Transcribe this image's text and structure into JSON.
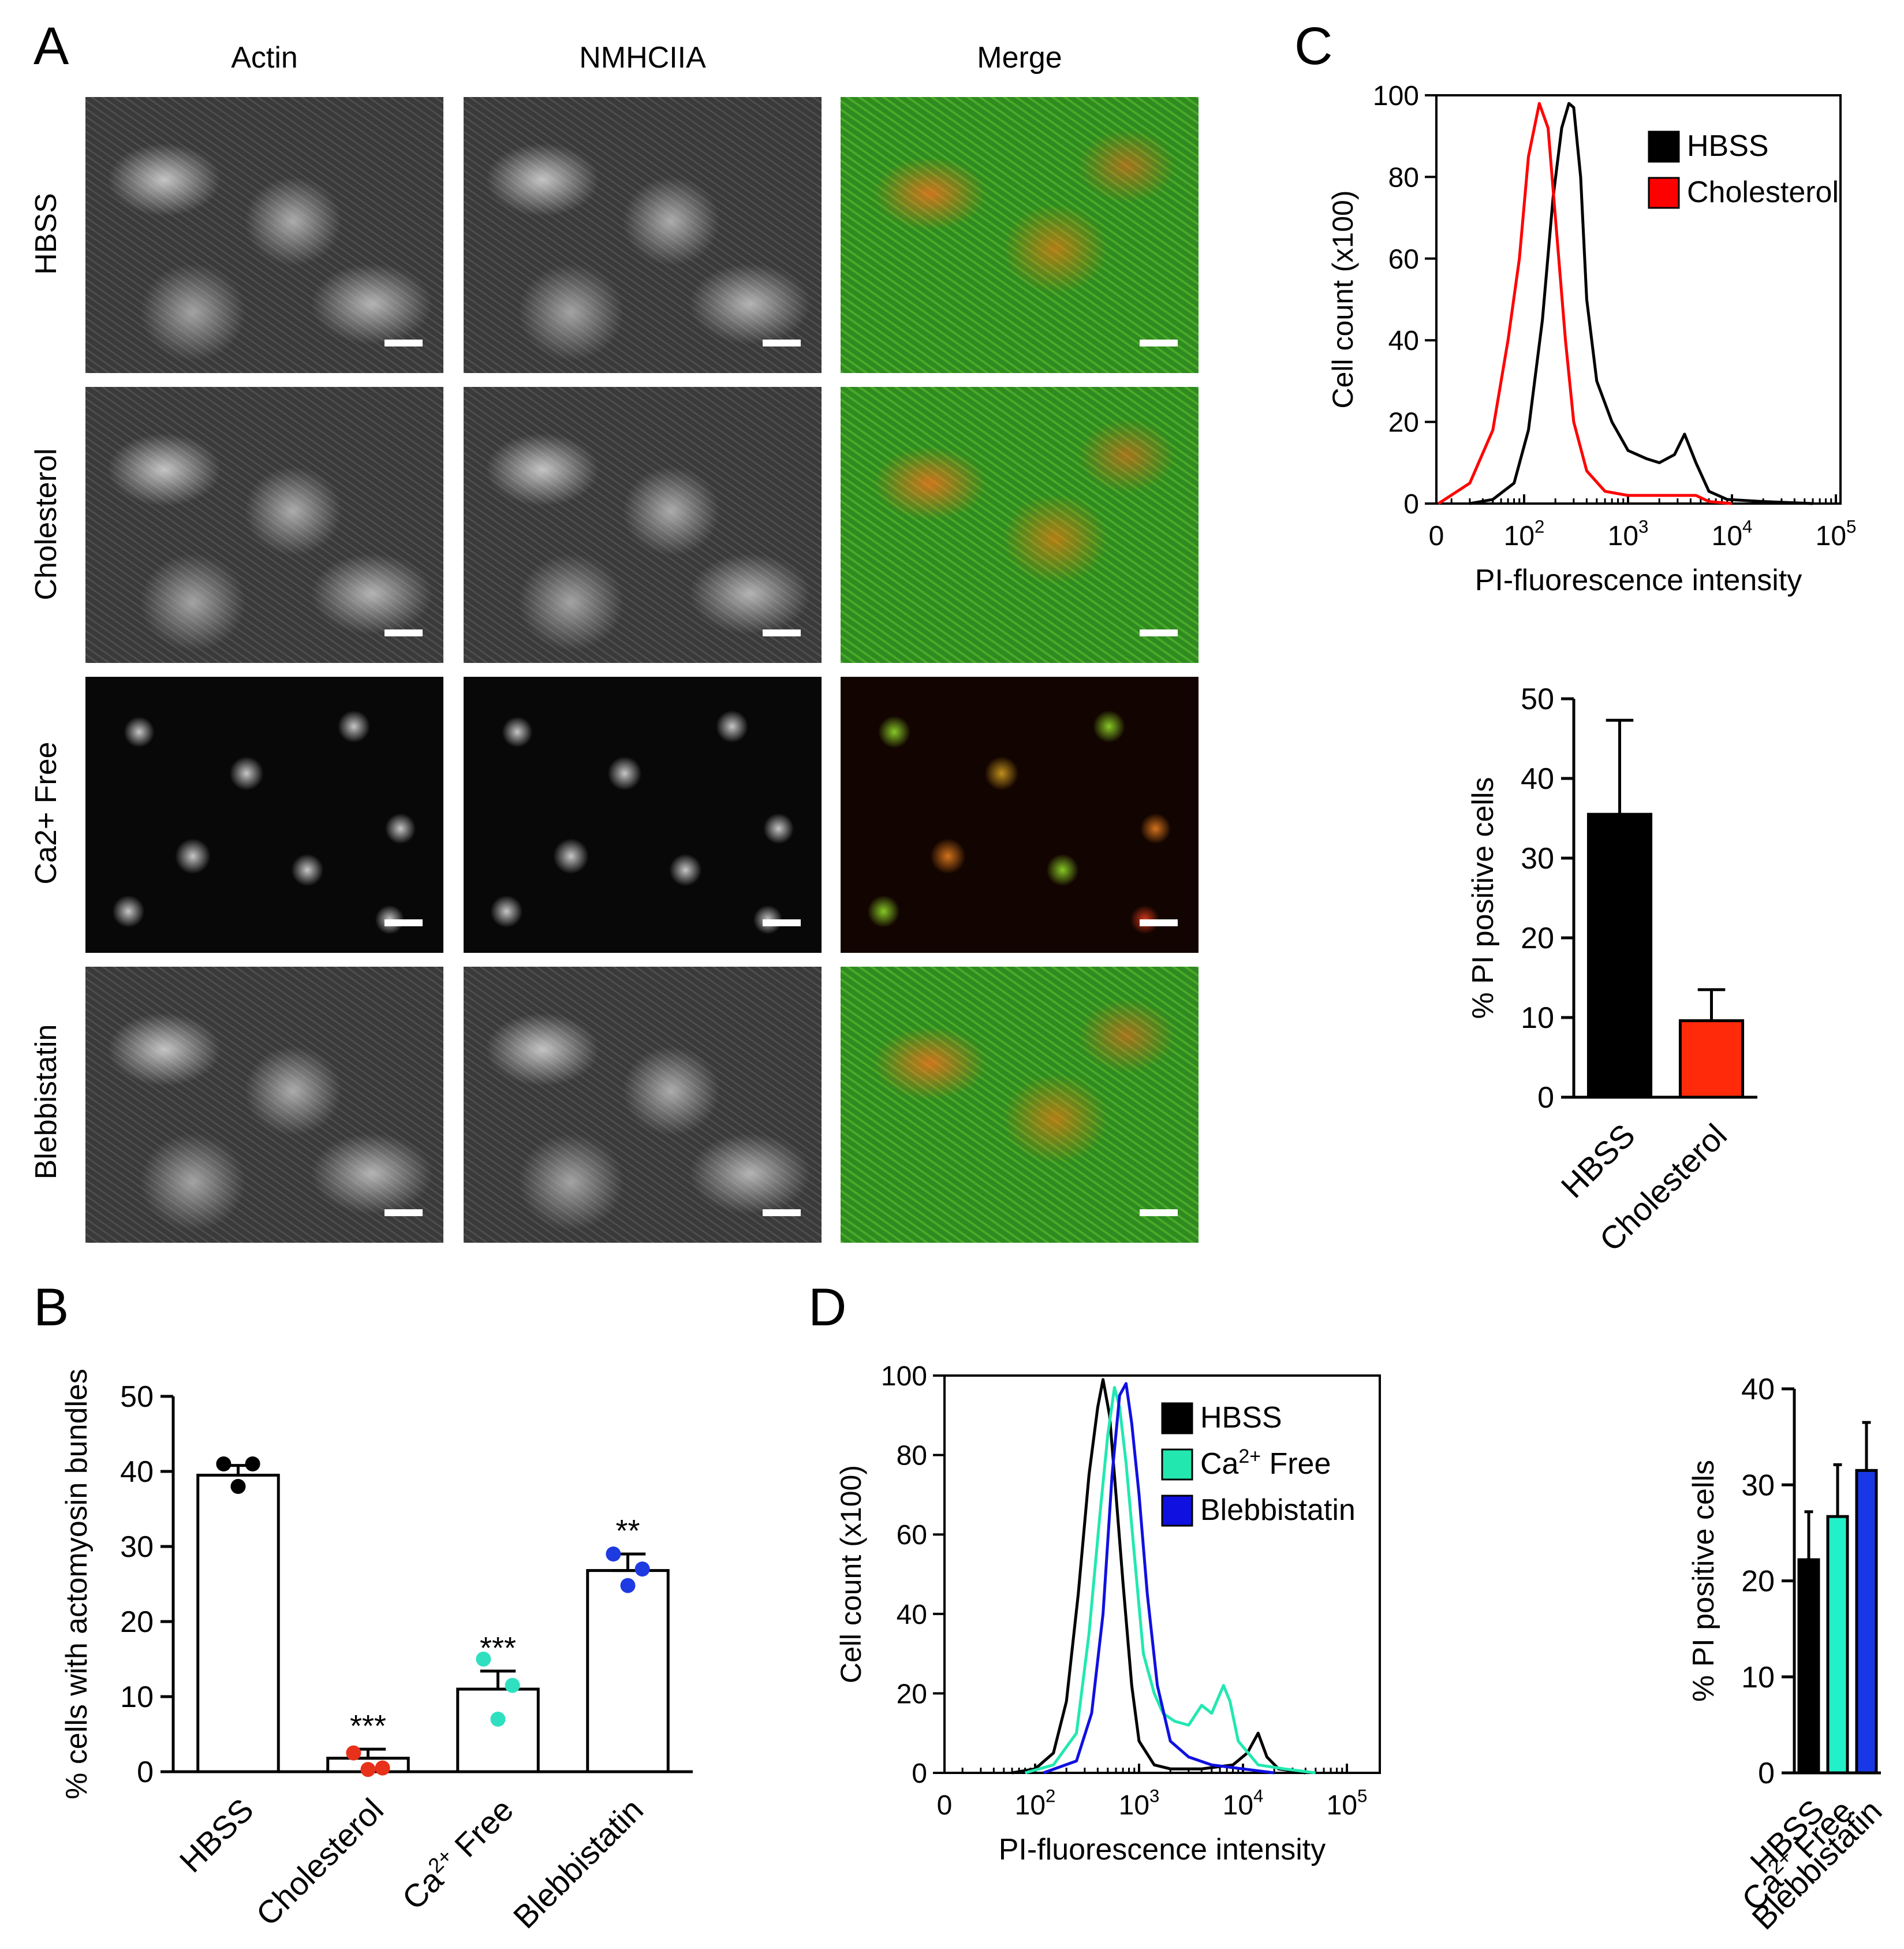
{
  "panel_labels": {
    "a": "A",
    "b": "B",
    "c": "C",
    "d": "D"
  },
  "microscopy": {
    "columns": [
      "Actin",
      "NMHCIIA",
      "Merge"
    ],
    "rows": [
      "HBSS",
      "Cholesterol",
      "Ca2+ Free",
      "Blebbistatin"
    ]
  },
  "chart_data": [
    {
      "id": "B",
      "type": "bar",
      "categories": [
        "HBSS",
        "Cholesterol",
        "Ca2+ Free",
        "Blebbistatin"
      ],
      "values": [
        39.5,
        1.8,
        11,
        26.8
      ],
      "errors": [
        1.3,
        1.2,
        2.4,
        2.2
      ],
      "points": [
        [
          41.0,
          41.0,
          38.0
        ],
        [
          2.5,
          0.5,
          0.3
        ],
        [
          15.0,
          11.5,
          7.0
        ],
        [
          29.0,
          27.0,
          24.8
        ]
      ],
      "point_colors": [
        "#000000",
        "#e8311a",
        "#2fe0c0",
        "#1d3be0"
      ],
      "significance": [
        "",
        "***",
        "***",
        "**"
      ],
      "ylabel": "% cells with actomyosin bundles",
      "ylim": [
        0,
        50
      ],
      "yticks": [
        0,
        10,
        20,
        30,
        40,
        50
      ]
    },
    {
      "id": "C-histogram",
      "type": "line",
      "xscale": "log",
      "xlabel": "PI-fluorescence intensity",
      "ylabel": "Cell count (x100)",
      "ylim": [
        0,
        100
      ],
      "yticks": [
        0,
        20,
        40,
        60,
        80,
        100
      ],
      "xticks": [
        "0",
        "10^2",
        "10^3",
        "10^4",
        "10^5"
      ],
      "legend_position": "top-right",
      "series": [
        {
          "name": "HBSS",
          "color": "#000000",
          "x": [
            30,
            50,
            80,
            110,
            150,
            190,
            230,
            270,
            300,
            350,
            400,
            500,
            700,
            1000,
            1500,
            2000,
            2800,
            3500,
            4500,
            6000,
            9000,
            20000,
            60000
          ],
          "y": [
            0,
            1,
            5,
            18,
            45,
            75,
            92,
            98,
            97,
            80,
            50,
            30,
            20,
            13,
            11,
            10,
            12,
            17,
            10,
            3,
            1,
            0.5,
            0
          ]
        },
        {
          "name": "Cholesterol",
          "color": "#ff0000",
          "x": [
            15,
            30,
            50,
            70,
            90,
            110,
            140,
            170,
            200,
            250,
            300,
            400,
            600,
            1000,
            2000,
            3000,
            4500,
            6000,
            10000
          ],
          "y": [
            0,
            5,
            18,
            40,
            60,
            85,
            98,
            92,
            70,
            40,
            20,
            8,
            3,
            2,
            2,
            2,
            2,
            0.5,
            0
          ]
        }
      ]
    },
    {
      "id": "C-bar",
      "type": "bar",
      "categories": [
        "HBSS",
        "Cholesterol"
      ],
      "values": [
        35.5,
        9.6
      ],
      "errors": [
        11.8,
        3.9
      ],
      "colors": [
        "#000000",
        "#ff2a0a"
      ],
      "ylabel": "% PI positive cells",
      "ylim": [
        0,
        50
      ],
      "yticks": [
        0,
        10,
        20,
        30,
        40,
        50
      ]
    },
    {
      "id": "D-histogram",
      "type": "line",
      "xscale": "log",
      "xlabel": "PI-fluorescence intensity",
      "ylabel": "Cell count (x100)",
      "ylim": [
        0,
        100
      ],
      "yticks": [
        0,
        20,
        40,
        60,
        80,
        100
      ],
      "xticks": [
        "0",
        "10^2",
        "10^3",
        "10^4",
        "10^5"
      ],
      "legend_position": "top-right",
      "series": [
        {
          "name": "HBSS",
          "color": "#000000",
          "x": [
            60,
            100,
            150,
            200,
            260,
            330,
            400,
            450,
            520,
            600,
            700,
            850,
            1000,
            1400,
            2000,
            4000,
            8000,
            11000,
            14000,
            17000,
            22000,
            40000
          ],
          "y": [
            0,
            1,
            5,
            18,
            45,
            75,
            92,
            99,
            90,
            70,
            48,
            22,
            8,
            2,
            1,
            1,
            2,
            5,
            10,
            4,
            1,
            0
          ]
        },
        {
          "name": "Ca2+ Free",
          "color": "#22e8b0",
          "x": [
            80,
            150,
            250,
            330,
            420,
            500,
            580,
            650,
            750,
            900,
            1100,
            1400,
            1700,
            2200,
            3000,
            4000,
            5000,
            6500,
            7500,
            9000,
            14000,
            25000,
            50000
          ],
          "y": [
            0,
            2,
            10,
            35,
            65,
            85,
            97,
            92,
            78,
            55,
            30,
            20,
            15,
            13,
            12,
            17,
            15,
            22,
            18,
            8,
            2,
            1,
            0
          ]
        },
        {
          "name": "Blebbistatin",
          "color": "#1010e0",
          "x": [
            120,
            250,
            350,
            450,
            550,
            650,
            750,
            850,
            1000,
            1200,
            1500,
            2000,
            3000,
            5000,
            10000,
            20000
          ],
          "y": [
            0,
            3,
            15,
            40,
            75,
            95,
            98,
            88,
            70,
            45,
            22,
            8,
            4,
            2,
            1,
            0
          ]
        }
      ]
    },
    {
      "id": "D-bar",
      "type": "bar",
      "categories": [
        "HBSS",
        "Ca2+ Free",
        "Blebbistatin"
      ],
      "values": [
        22.2,
        26.7,
        31.5
      ],
      "errors": [
        5.0,
        5.4,
        5.0
      ],
      "colors": [
        "#000000",
        "#22f0c8",
        "#1838e8"
      ],
      "ylabel": "% PI positive cells",
      "ylim": [
        0,
        40
      ],
      "yticks": [
        0,
        10,
        20,
        30,
        40
      ]
    }
  ]
}
